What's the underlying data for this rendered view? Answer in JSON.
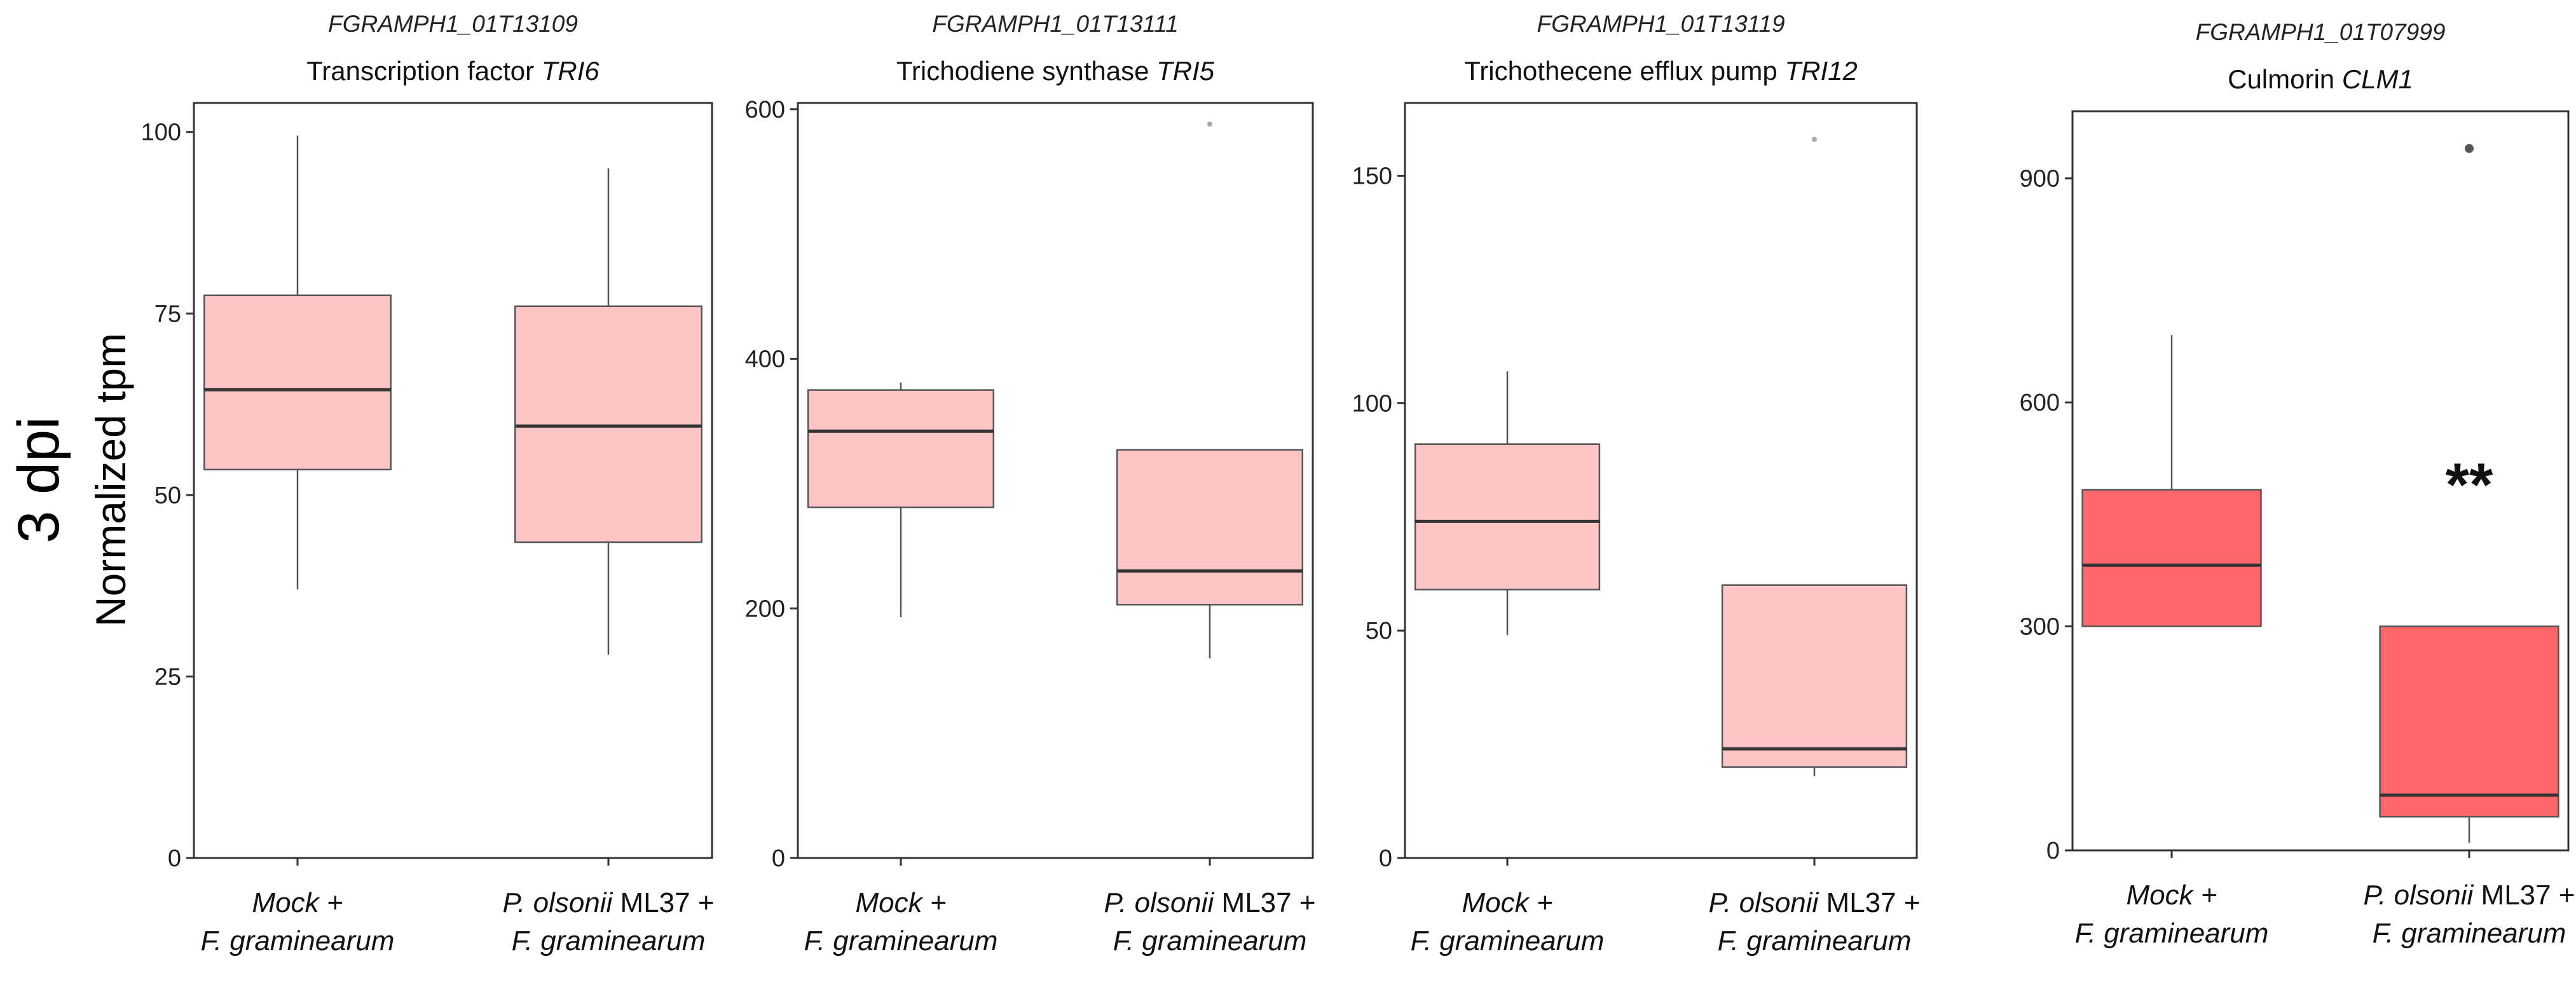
{
  "figure": {
    "row_label": "3 dpi",
    "ylabel": "Normalized tpm"
  },
  "chart_data": [
    {
      "type": "box",
      "gene_id": "FGRAMPH1_01T13109",
      "title_plain": "Transcription factor ",
      "title_italic": "TRI6",
      "ylabel": "Normalized tpm",
      "ylim": [
        0,
        104
      ],
      "yticks": [
        0,
        25,
        50,
        75,
        100
      ],
      "categories": [
        {
          "line1_italic": "Mock +",
          "line1_plain": "",
          "line2_italic": "F. graminearum"
        },
        {
          "line1_italic": "P. olsonii",
          "line1_plain": " ML37 +",
          "line2_italic": "F. graminearum"
        }
      ],
      "boxes": [
        {
          "min": 37,
          "q1": 53.5,
          "median": 64.5,
          "q3": 77.5,
          "max": 99.5,
          "outliers": []
        },
        {
          "min": 28,
          "q1": 43.5,
          "median": 59.5,
          "q3": 76,
          "max": 95,
          "outliers": []
        }
      ],
      "fill": "#fec5c7",
      "annotation": ""
    },
    {
      "type": "box",
      "gene_id": "FGRAMPH1_01T13111",
      "title_plain": "Trichodiene synthase ",
      "title_italic": "TRI5",
      "ylabel": "Normalized tpm",
      "ylim": [
        0,
        605
      ],
      "yticks": [
        0,
        200,
        400,
        600
      ],
      "categories": [
        {
          "line1_italic": "Mock +",
          "line1_plain": "",
          "line2_italic": "F. graminearum"
        },
        {
          "line1_italic": "P. olsonii",
          "line1_plain": " ML37 +",
          "line2_italic": "F. graminearum"
        }
      ],
      "boxes": [
        {
          "min": 193,
          "q1": 281,
          "median": 342,
          "q3": 375,
          "max": 381,
          "outliers": []
        },
        {
          "min": 160,
          "q1": 203,
          "median": 230,
          "q3": 327,
          "max": 327,
          "outliers": [
            588
          ]
        }
      ],
      "fill": "#fec5c7",
      "annotation": ""
    },
    {
      "type": "box",
      "gene_id": "FGRAMPH1_01T13119",
      "title_plain": "Trichothecene efflux pump ",
      "title_italic": "TRI12",
      "ylabel": "Normalized tpm",
      "ylim": [
        0,
        166
      ],
      "yticks": [
        0,
        50,
        100,
        150
      ],
      "categories": [
        {
          "line1_italic": "Mock +",
          "line1_plain": "",
          "line2_italic": "F. graminearum"
        },
        {
          "line1_italic": "P. olsonii",
          "line1_plain": " ML37 +",
          "line2_italic": "F. graminearum"
        }
      ],
      "boxes": [
        {
          "min": 49,
          "q1": 59,
          "median": 74,
          "q3": 91,
          "max": 107,
          "outliers": []
        },
        {
          "min": 18,
          "q1": 20,
          "median": 24,
          "q3": 60,
          "max": 60,
          "outliers": [
            158
          ]
        }
      ],
      "fill": "#fec5c7",
      "annotation": ""
    },
    {
      "type": "box",
      "gene_id": "FGRAMPH1_01T07999",
      "title_plain": "Culmorin ",
      "title_italic": "CLM1",
      "ylabel": "Normalized tpm",
      "ylim": [
        0,
        990
      ],
      "yticks": [
        0,
        300,
        600,
        900
      ],
      "categories": [
        {
          "line1_italic": "Mock +",
          "line1_plain": "",
          "line2_italic": "F. graminearum"
        },
        {
          "line1_italic": "P. olsonii",
          "line1_plain": " ML37 +",
          "line2_italic": "F. graminearum"
        }
      ],
      "boxes": [
        {
          "min": 300,
          "q1": 300,
          "median": 382,
          "q3": 483,
          "max": 690,
          "outliers": []
        },
        {
          "min": 10,
          "q1": 45,
          "median": 74,
          "q3": 300,
          "max": 300,
          "outliers": [
            940
          ]
        }
      ],
      "fill": "#fe6669",
      "annotation": "**"
    }
  ]
}
